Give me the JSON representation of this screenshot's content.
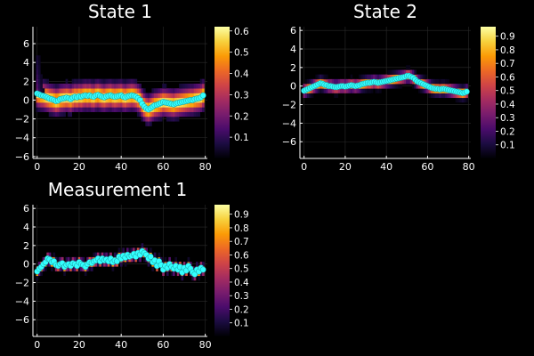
{
  "figure": {
    "background": "#000000",
    "marker_color": "#33ffff",
    "grid_color": "#2a2a2a"
  },
  "colormap": {
    "name": "inferno",
    "stops": [
      "#000004",
      "#1b0c41",
      "#4a0c6b",
      "#781c6d",
      "#a52c60",
      "#cf4446",
      "#ed6925",
      "#fb9b06",
      "#f7d13d",
      "#fcffa4"
    ]
  },
  "chart_data": [
    {
      "type": "heatmap",
      "title": "State 1",
      "xlabel": "",
      "ylabel": "",
      "xlim": [
        -2,
        81
      ],
      "ylim": [
        -6.2,
        7.8
      ],
      "xticks": [
        0,
        20,
        40,
        60,
        80
      ],
      "yticks": [
        -6,
        -4,
        -2,
        0,
        2,
        4,
        6
      ],
      "grid": true,
      "colorbar": {
        "range": [
          0,
          0.62
        ],
        "ticks": [
          0.1,
          0.2,
          0.3,
          0.4,
          0.5,
          0.6
        ]
      },
      "heatmap_spread": 0.8,
      "heatmap_peak": 0.6,
      "points": {
        "x": [
          0,
          1,
          2,
          3,
          4,
          5,
          6,
          7,
          8,
          9,
          10,
          11,
          12,
          13,
          14,
          15,
          16,
          17,
          18,
          19,
          20,
          21,
          22,
          23,
          24,
          25,
          26,
          27,
          28,
          29,
          30,
          31,
          32,
          33,
          34,
          35,
          36,
          37,
          38,
          39,
          40,
          41,
          42,
          43,
          44,
          45,
          46,
          47,
          48,
          49,
          50,
          51,
          52,
          53,
          54,
          55,
          56,
          57,
          58,
          59,
          60,
          61,
          62,
          63,
          64,
          65,
          66,
          67,
          68,
          69,
          70,
          71,
          72,
          73,
          74,
          75,
          76,
          77,
          78,
          79
        ],
        "y": [
          0.7,
          0.6,
          0.5,
          0.45,
          0.35,
          0.25,
          0.15,
          0.1,
          0.0,
          -0.1,
          -0.05,
          0.1,
          0.15,
          0.2,
          0.25,
          0.2,
          0.1,
          0.25,
          0.35,
          0.3,
          0.4,
          0.35,
          0.45,
          0.5,
          0.45,
          0.5,
          0.4,
          0.35,
          0.5,
          0.55,
          0.45,
          0.35,
          0.3,
          0.4,
          0.45,
          0.5,
          0.4,
          0.35,
          0.4,
          0.45,
          0.5,
          0.35,
          0.3,
          0.4,
          0.45,
          0.5,
          0.45,
          0.35,
          0.2,
          0.0,
          -0.4,
          -0.7,
          -0.9,
          -1.0,
          -0.85,
          -0.7,
          -0.55,
          -0.5,
          -0.4,
          -0.3,
          -0.2,
          -0.25,
          -0.3,
          -0.35,
          -0.4,
          -0.45,
          -0.35,
          -0.3,
          -0.25,
          -0.2,
          -0.15,
          -0.1,
          -0.05,
          0.0,
          0.0,
          0.1,
          0.15,
          0.2,
          0.3,
          0.5
        ]
      }
    },
    {
      "type": "heatmap",
      "title": "State 2",
      "xlabel": "",
      "ylabel": "",
      "xlim": [
        -2,
        81
      ],
      "ylim": [
        -7.8,
        6.4
      ],
      "xticks": [
        0,
        20,
        40,
        60,
        80
      ],
      "yticks": [
        -6,
        -4,
        -2,
        0,
        2,
        4,
        6
      ],
      "grid": true,
      "colorbar": {
        "range": [
          0,
          0.97
        ],
        "ticks": [
          0.1,
          0.2,
          0.3,
          0.4,
          0.5,
          0.6,
          0.7,
          0.8,
          0.9
        ]
      },
      "heatmap_spread": 0.35,
      "heatmap_peak": 0.92,
      "points": {
        "x": [
          0,
          1,
          2,
          3,
          4,
          5,
          6,
          7,
          8,
          9,
          10,
          11,
          12,
          13,
          14,
          15,
          16,
          17,
          18,
          19,
          20,
          21,
          22,
          23,
          24,
          25,
          26,
          27,
          28,
          29,
          30,
          31,
          32,
          33,
          34,
          35,
          36,
          37,
          38,
          39,
          40,
          41,
          42,
          43,
          44,
          45,
          46,
          47,
          48,
          49,
          50,
          51,
          52,
          53,
          54,
          55,
          56,
          57,
          58,
          59,
          60,
          61,
          62,
          63,
          64,
          65,
          66,
          67,
          68,
          69,
          70,
          71,
          72,
          73,
          74,
          75,
          76,
          77,
          78,
          79
        ],
        "y": [
          -0.5,
          -0.4,
          -0.3,
          -0.2,
          -0.1,
          0.0,
          0.1,
          0.2,
          0.3,
          0.25,
          0.15,
          0.1,
          0.0,
          0.0,
          -0.05,
          -0.1,
          -0.1,
          -0.05,
          0.0,
          0.0,
          -0.05,
          0.0,
          0.05,
          0.1,
          0.05,
          0.0,
          0.05,
          0.1,
          0.2,
          0.25,
          0.3,
          0.35,
          0.35,
          0.4,
          0.45,
          0.4,
          0.35,
          0.4,
          0.45,
          0.5,
          0.55,
          0.6,
          0.65,
          0.7,
          0.75,
          0.8,
          0.85,
          0.9,
          0.95,
          1.0,
          1.1,
          1.1,
          1.0,
          0.9,
          0.7,
          0.5,
          0.4,
          0.3,
          0.2,
          0.1,
          0.0,
          -0.1,
          -0.2,
          -0.25,
          -0.3,
          -0.3,
          -0.35,
          -0.3,
          -0.3,
          -0.35,
          -0.4,
          -0.45,
          -0.5,
          -0.55,
          -0.6,
          -0.65,
          -0.7,
          -0.75,
          -0.7,
          -0.6
        ]
      }
    },
    {
      "type": "heatmap",
      "title": "Measurement 1",
      "xlabel": "",
      "ylabel": "",
      "xlim": [
        -2,
        81
      ],
      "ylim": [
        -7.8,
        6.4
      ],
      "xticks": [
        0,
        20,
        40,
        60,
        80
      ],
      "yticks": [
        -6,
        -4,
        -2,
        0,
        2,
        4,
        6
      ],
      "grid": true,
      "colorbar": {
        "range": [
          0,
          0.97
        ],
        "ticks": [
          0.1,
          0.2,
          0.3,
          0.4,
          0.5,
          0.6,
          0.7,
          0.8,
          0.9
        ]
      },
      "heatmap_spread": 0.3,
      "heatmap_peak": 0.95,
      "points": {
        "x": [
          0,
          1,
          2,
          3,
          4,
          5,
          6,
          7,
          8,
          9,
          10,
          11,
          12,
          13,
          14,
          15,
          16,
          17,
          18,
          19,
          20,
          21,
          22,
          23,
          24,
          25,
          26,
          27,
          28,
          29,
          30,
          31,
          32,
          33,
          34,
          35,
          36,
          37,
          38,
          39,
          40,
          41,
          42,
          43,
          44,
          45,
          46,
          47,
          48,
          49,
          50,
          51,
          52,
          53,
          54,
          55,
          56,
          57,
          58,
          59,
          60,
          61,
          62,
          63,
          64,
          65,
          66,
          67,
          68,
          69,
          70,
          71,
          72,
          73,
          74,
          75,
          76,
          77,
          78,
          79
        ],
        "y": [
          -0.8,
          -0.5,
          -0.3,
          0.0,
          0.2,
          0.6,
          0.5,
          0.2,
          0.3,
          -0.1,
          -0.2,
          0.0,
          0.1,
          -0.3,
          -0.1,
          0.0,
          -0.2,
          0.1,
          0.0,
          -0.2,
          0.2,
          0.0,
          -0.1,
          -0.3,
          0.0,
          0.2,
          0.1,
          0.3,
          0.4,
          0.6,
          0.3,
          0.6,
          0.4,
          0.5,
          0.3,
          0.6,
          0.2,
          0.4,
          0.3,
          0.8,
          0.6,
          0.9,
          0.7,
          1.0,
          0.8,
          0.9,
          1.1,
          0.8,
          1.2,
          1.0,
          1.4,
          1.2,
          1.0,
          0.6,
          0.8,
          0.2,
          0.4,
          -0.2,
          0.3,
          -0.1,
          -0.6,
          -0.2,
          -0.4,
          0.0,
          -0.3,
          -0.5,
          -0.2,
          -0.6,
          -0.3,
          -0.9,
          -0.4,
          -0.7,
          -0.2,
          -0.5,
          -0.9,
          -1.1,
          -0.6,
          -0.8,
          -0.4,
          -0.6
        ]
      }
    }
  ]
}
